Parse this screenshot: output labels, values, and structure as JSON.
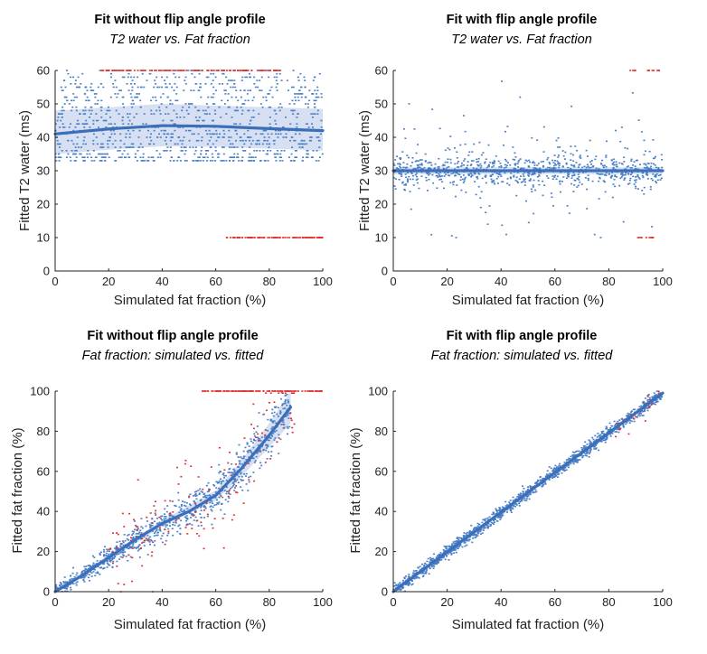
{
  "colors": {
    "blue": "#4a7fc6",
    "red": "#e03030",
    "band": "#c8d6ee",
    "fit": "#3c6fba"
  },
  "chart_data": [
    {
      "id": "tl",
      "type": "scatter",
      "title": "Fit without flip angle profile",
      "subtitle": "T2 water vs. Fat fraction",
      "xlabel": "Simulated fat fraction (%)",
      "ylabel": "Fitted T2 water (ms)",
      "xlim": [
        0,
        100
      ],
      "ylim": [
        0,
        60
      ],
      "xticks": [
        0,
        20,
        40,
        60,
        80,
        100
      ],
      "yticks": [
        0,
        10,
        20,
        30,
        40,
        50,
        60
      ],
      "series": [
        {
          "name": "fitted points",
          "color": "blue",
          "description": "dense cloud between ~33 and 60 ms across all fat fractions"
        },
        {
          "name": "outliers",
          "color": "red",
          "description": "points stuck at 60 ms (x 17-85) and 10 ms (x 64-100)"
        }
      ],
      "trend": {
        "x": [
          0,
          20,
          40,
          60,
          80,
          100
        ],
        "y": [
          41,
          42.5,
          43.5,
          43.3,
          42.6,
          42
        ]
      },
      "band": {
        "x": [
          0,
          20,
          40,
          60,
          80,
          100
        ],
        "lower": [
          35,
          36.3,
          37.3,
          37.2,
          36.6,
          36
        ],
        "upper": [
          48,
          49,
          50,
          49.5,
          49,
          48.5
        ]
      }
    },
    {
      "id": "tr",
      "type": "scatter",
      "title": "Fit with flip angle profile",
      "subtitle": "T2 water vs. Fat fraction",
      "xlabel": "Simulated fat fraction (%)",
      "ylabel": "Fitted T2 water (ms)",
      "xlim": [
        0,
        100
      ],
      "ylim": [
        0,
        60
      ],
      "xticks": [
        0,
        20,
        40,
        60,
        80,
        100
      ],
      "yticks": [
        0,
        10,
        20,
        30,
        40,
        50,
        60
      ],
      "series": [
        {
          "name": "fitted points",
          "color": "blue",
          "description": "concentrated near 30 ms with sparse scatter from 10 to 60 ms"
        },
        {
          "name": "outliers",
          "color": "red",
          "description": "a few points at 60 ms and 10 ms near x 87-100"
        }
      ],
      "trend": {
        "x": [
          0,
          100
        ],
        "y": [
          30,
          30
        ]
      },
      "band": {
        "x": [
          0,
          100
        ],
        "lower": [
          29,
          29
        ],
        "upper": [
          31,
          31
        ]
      }
    },
    {
      "id": "bl",
      "type": "scatter",
      "title": "Fit without flip angle profile",
      "subtitle": "Fat fraction: simulated vs. fitted",
      "xlabel": "Simulated fat fraction (%)",
      "ylabel": "Fitted fat fraction (%)",
      "xlim": [
        0,
        100
      ],
      "ylim": [
        0,
        100
      ],
      "xticks": [
        0,
        20,
        40,
        60,
        80,
        100
      ],
      "yticks": [
        0,
        20,
        40,
        60,
        80,
        100
      ],
      "series": [
        {
          "name": "fitted points",
          "color": "blue",
          "description": "follows curved trend, bending upward above ~60%"
        },
        {
          "name": "outliers",
          "color": "red",
          "description": "scattered points 20-90%, and a line saturated at 100% (x 55-100)"
        }
      ],
      "trend": {
        "x": [
          0,
          10,
          20,
          30,
          40,
          50,
          60,
          70,
          80,
          88
        ],
        "y": [
          0,
          8,
          17,
          26,
          34,
          40,
          48,
          62,
          78,
          92
        ]
      },
      "band": {
        "x": [
          0,
          20,
          40,
          60,
          70,
          80,
          88
        ],
        "lower": [
          0,
          15.5,
          32.5,
          45.5,
          58,
          72,
          84
        ],
        "upper": [
          0.5,
          18.5,
          35.5,
          50.5,
          66,
          84,
          100
        ]
      }
    },
    {
      "id": "br",
      "type": "scatter",
      "title": "Fit with flip angle profile",
      "subtitle": "Fat fraction: simulated vs. fitted",
      "xlabel": "Simulated fat fraction (%)",
      "ylabel": "Fitted fat fraction (%)",
      "xlim": [
        0,
        100
      ],
      "ylim": [
        0,
        100
      ],
      "xticks": [
        0,
        20,
        40,
        60,
        80,
        100
      ],
      "yticks": [
        0,
        20,
        40,
        60,
        80,
        100
      ],
      "series": [
        {
          "name": "fitted points",
          "color": "blue",
          "description": "tight along identity line"
        },
        {
          "name": "outliers",
          "color": "red",
          "description": "a few points near x 82-100"
        }
      ],
      "trend": {
        "x": [
          0,
          100
        ],
        "y": [
          0,
          99
        ]
      },
      "band": {
        "x": [
          0,
          100
        ],
        "lower": [
          0,
          98
        ],
        "upper": [
          0.5,
          100
        ]
      }
    }
  ]
}
